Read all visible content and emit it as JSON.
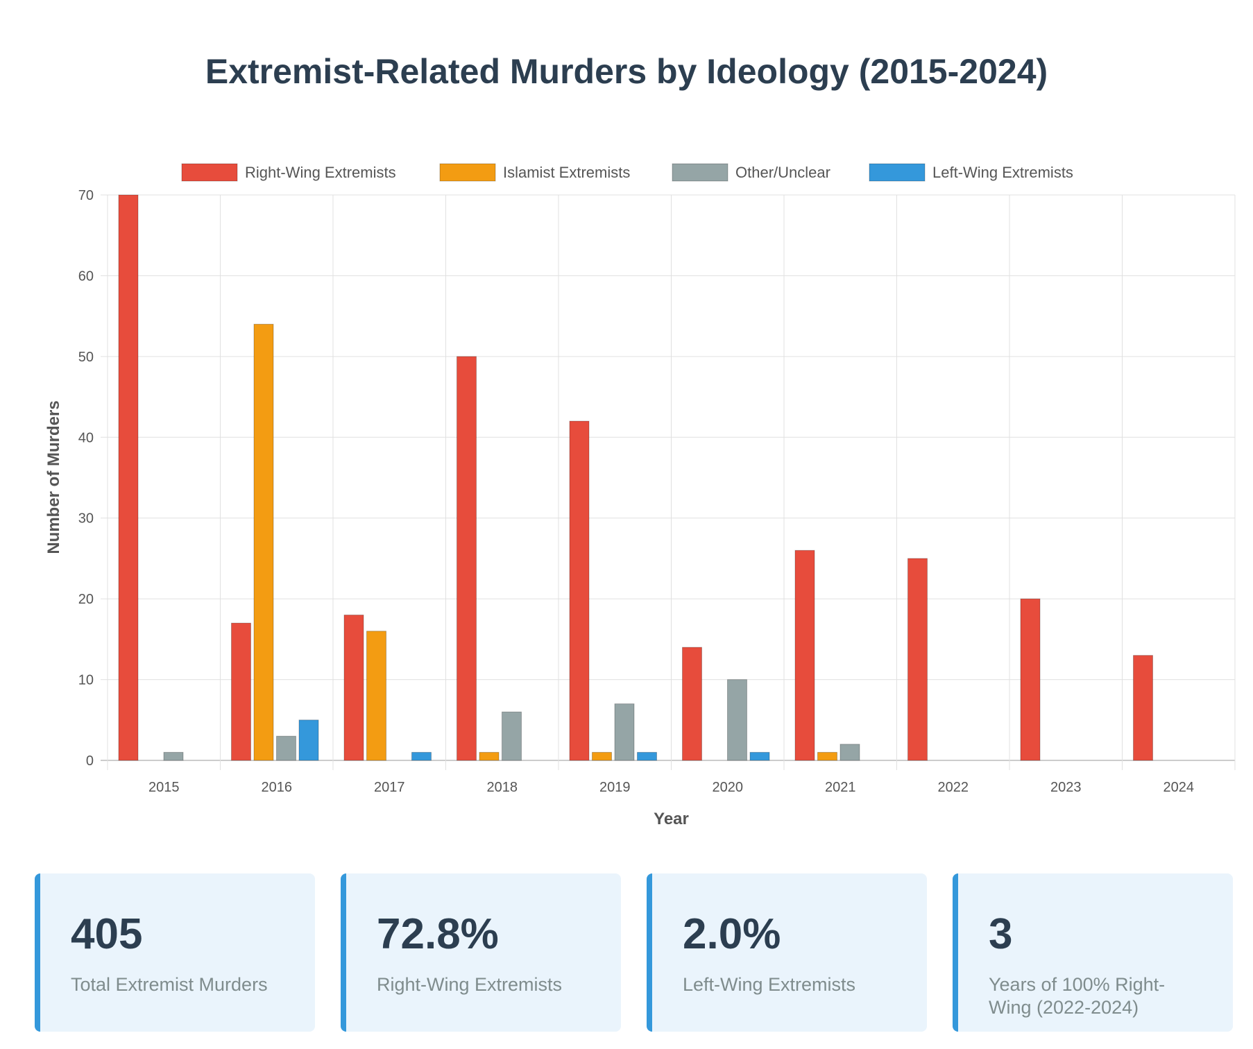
{
  "title": "Extremist-Related Murders by Ideology (2015-2024)",
  "colors": {
    "right_wing": "#e74c3c",
    "islamist": "#f39c12",
    "other": "#95a5a6",
    "left_wing": "#3498db",
    "accent": "#3498db",
    "card_bg": "#eaf4fc"
  },
  "chart_data": {
    "type": "bar",
    "xlabel": "Year",
    "ylabel": "Number of Murders",
    "ylim": [
      0,
      70
    ],
    "yticks": [
      0,
      10,
      20,
      30,
      40,
      50,
      60,
      70
    ],
    "grid": true,
    "legend_position": "top",
    "categories": [
      "2015",
      "2016",
      "2017",
      "2018",
      "2019",
      "2020",
      "2021",
      "2022",
      "2023",
      "2024"
    ],
    "series": [
      {
        "name": "Right-Wing Extremists",
        "color": "#e74c3c",
        "values": [
          70,
          17,
          18,
          50,
          42,
          14,
          26,
          25,
          20,
          13
        ]
      },
      {
        "name": "Islamist Extremists",
        "color": "#f39c12",
        "values": [
          0,
          54,
          16,
          1,
          1,
          0,
          1,
          0,
          0,
          0
        ]
      },
      {
        "name": "Other/Unclear",
        "color": "#95a5a6",
        "values": [
          1,
          3,
          0,
          6,
          7,
          10,
          2,
          0,
          0,
          0
        ]
      },
      {
        "name": "Left-Wing Extremists",
        "color": "#3498db",
        "values": [
          0,
          5,
          1,
          0,
          1,
          1,
          0,
          0,
          0,
          0
        ]
      }
    ]
  },
  "stats": [
    {
      "value": "405",
      "label": "Total Extremist Murders"
    },
    {
      "value": "72.8%",
      "label": "Right-Wing Extremists"
    },
    {
      "value": "2.0%",
      "label": "Left-Wing Extremists"
    },
    {
      "value": "3",
      "label": "Years of 100% Right-Wing (2022-2024)"
    }
  ]
}
